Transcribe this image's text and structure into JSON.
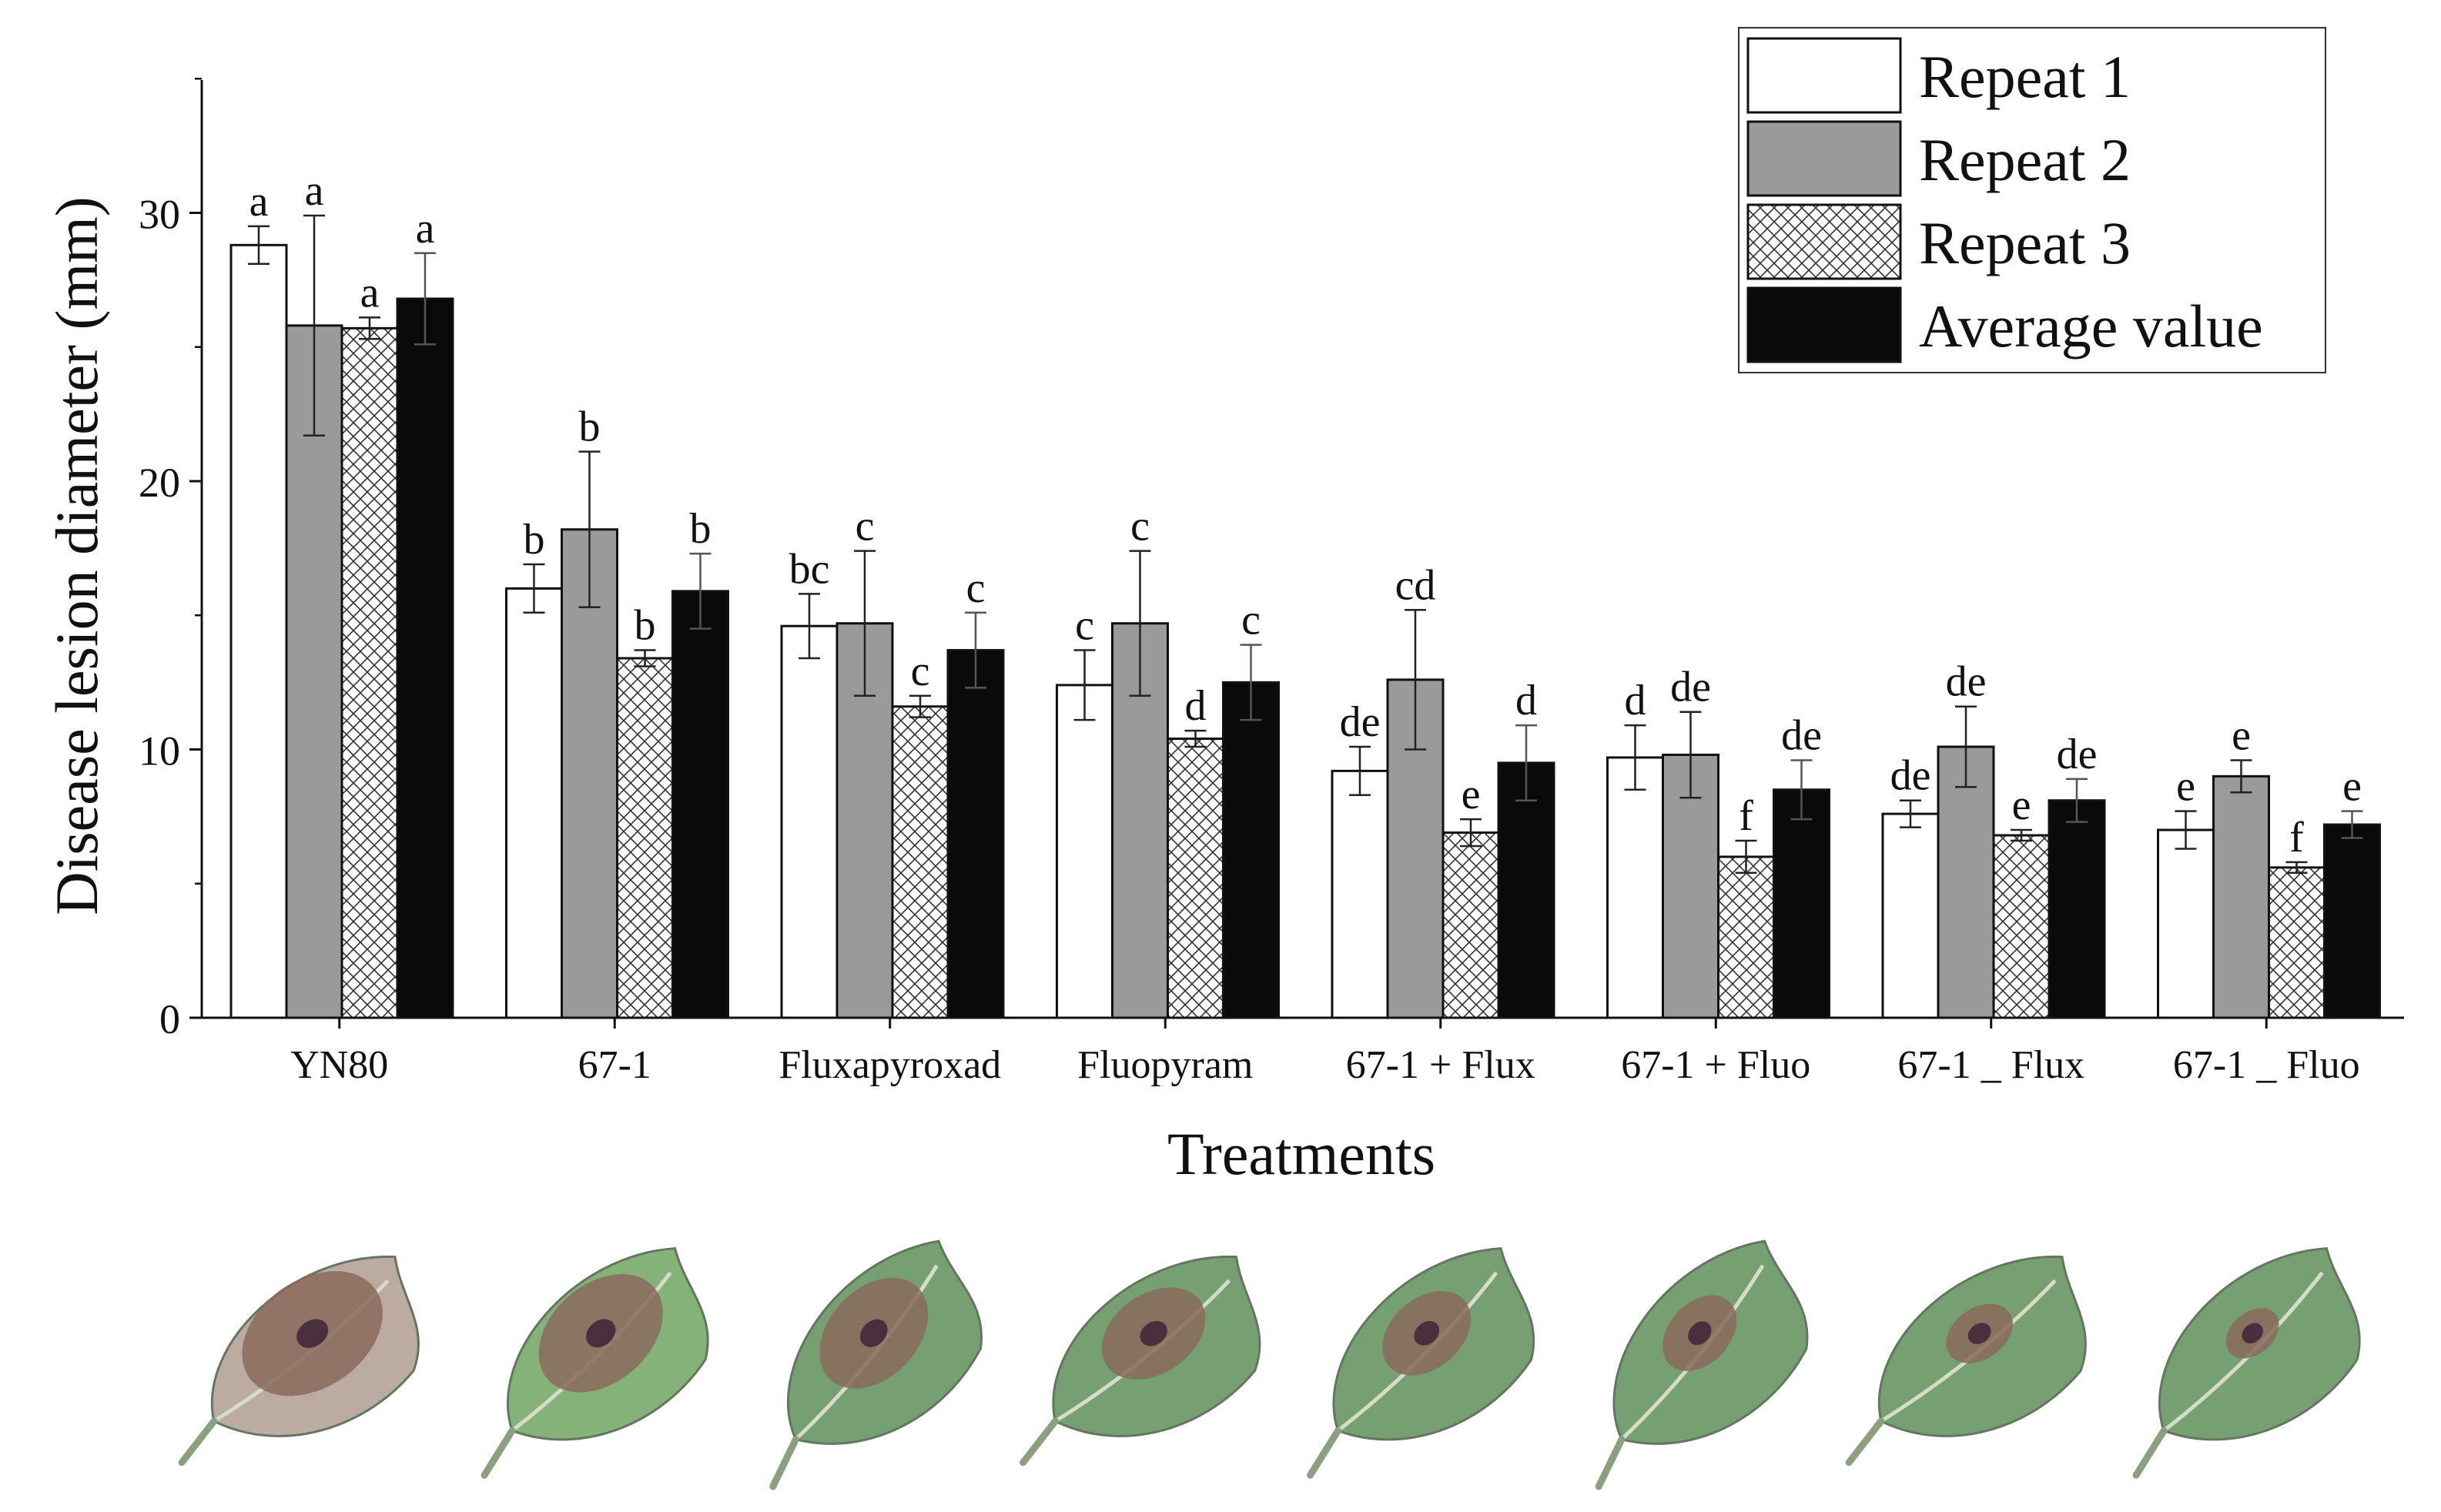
{
  "chart_data": {
    "type": "bar",
    "title": "",
    "xlabel": "Treatments",
    "ylabel": "Disease lesion diameter (mm)",
    "ylim": [
      0,
      35
    ],
    "yticks": [
      0,
      10,
      20,
      30
    ],
    "categories": [
      "YN80",
      "67-1",
      "Fluxapyroxad",
      "Fluopyram",
      "67-1 + Flux",
      "67-1 + Fluo",
      "67-1 _ Flux",
      "67-1 _ Fluo"
    ],
    "legend_position": "top-right",
    "series": [
      {
        "name": "Repeat 1",
        "style": "white",
        "values": [
          28.8,
          16.0,
          14.6,
          12.4,
          9.2,
          9.7,
          7.6,
          7.0
        ],
        "errors": [
          0.7,
          0.9,
          1.2,
          1.3,
          0.9,
          1.2,
          0.5,
          0.7
        ],
        "letters": [
          "a",
          "b",
          "bc",
          "c",
          "de",
          "d",
          "de",
          "e"
        ]
      },
      {
        "name": "Repeat 2",
        "style": "gray",
        "values": [
          25.8,
          18.2,
          14.7,
          14.7,
          12.6,
          9.8,
          10.1,
          9.0
        ],
        "errors": [
          4.1,
          2.9,
          2.7,
          2.7,
          2.6,
          1.6,
          1.5,
          0.6
        ],
        "letters": [
          "a",
          "b",
          "c",
          "c",
          "cd",
          "de",
          "de",
          "e"
        ]
      },
      {
        "name": "Repeat 3",
        "style": "hatch",
        "values": [
          25.7,
          13.4,
          11.6,
          10.4,
          6.9,
          6.0,
          6.8,
          5.6
        ],
        "errors": [
          0.4,
          0.3,
          0.4,
          0.3,
          0.5,
          0.6,
          0.2,
          0.2
        ],
        "letters": [
          "a",
          "b",
          "c",
          "d",
          "e",
          "f",
          "e",
          "f"
        ]
      },
      {
        "name": "Average value",
        "style": "black",
        "values": [
          26.8,
          15.9,
          13.7,
          12.5,
          9.5,
          8.5,
          8.1,
          7.2
        ],
        "errors": [
          1.7,
          1.4,
          1.4,
          1.4,
          1.4,
          1.1,
          0.8,
          0.5
        ],
        "letters": [
          "a",
          "b",
          "c",
          "c",
          "d",
          "de",
          "de",
          "e"
        ]
      }
    ]
  },
  "leaf_photos": [
    "YN80 leaf",
    "67-1 leaf",
    "Fluxapyroxad leaf",
    "Fluopyram leaf",
    "67-1 + Flux leaf",
    "67-1 + Fluo leaf",
    "67-1 _ Flux leaf",
    "67-1 _ Fluo leaf"
  ],
  "colors": {
    "bar_white": "#ffffff",
    "bar_gray": "#9a9a9a",
    "bar_black": "#0a0a0a",
    "leaf_green": "#6f9b6a",
    "lesion_brown": "#8a6a5c",
    "lesion_center": "#4a2f3f"
  }
}
